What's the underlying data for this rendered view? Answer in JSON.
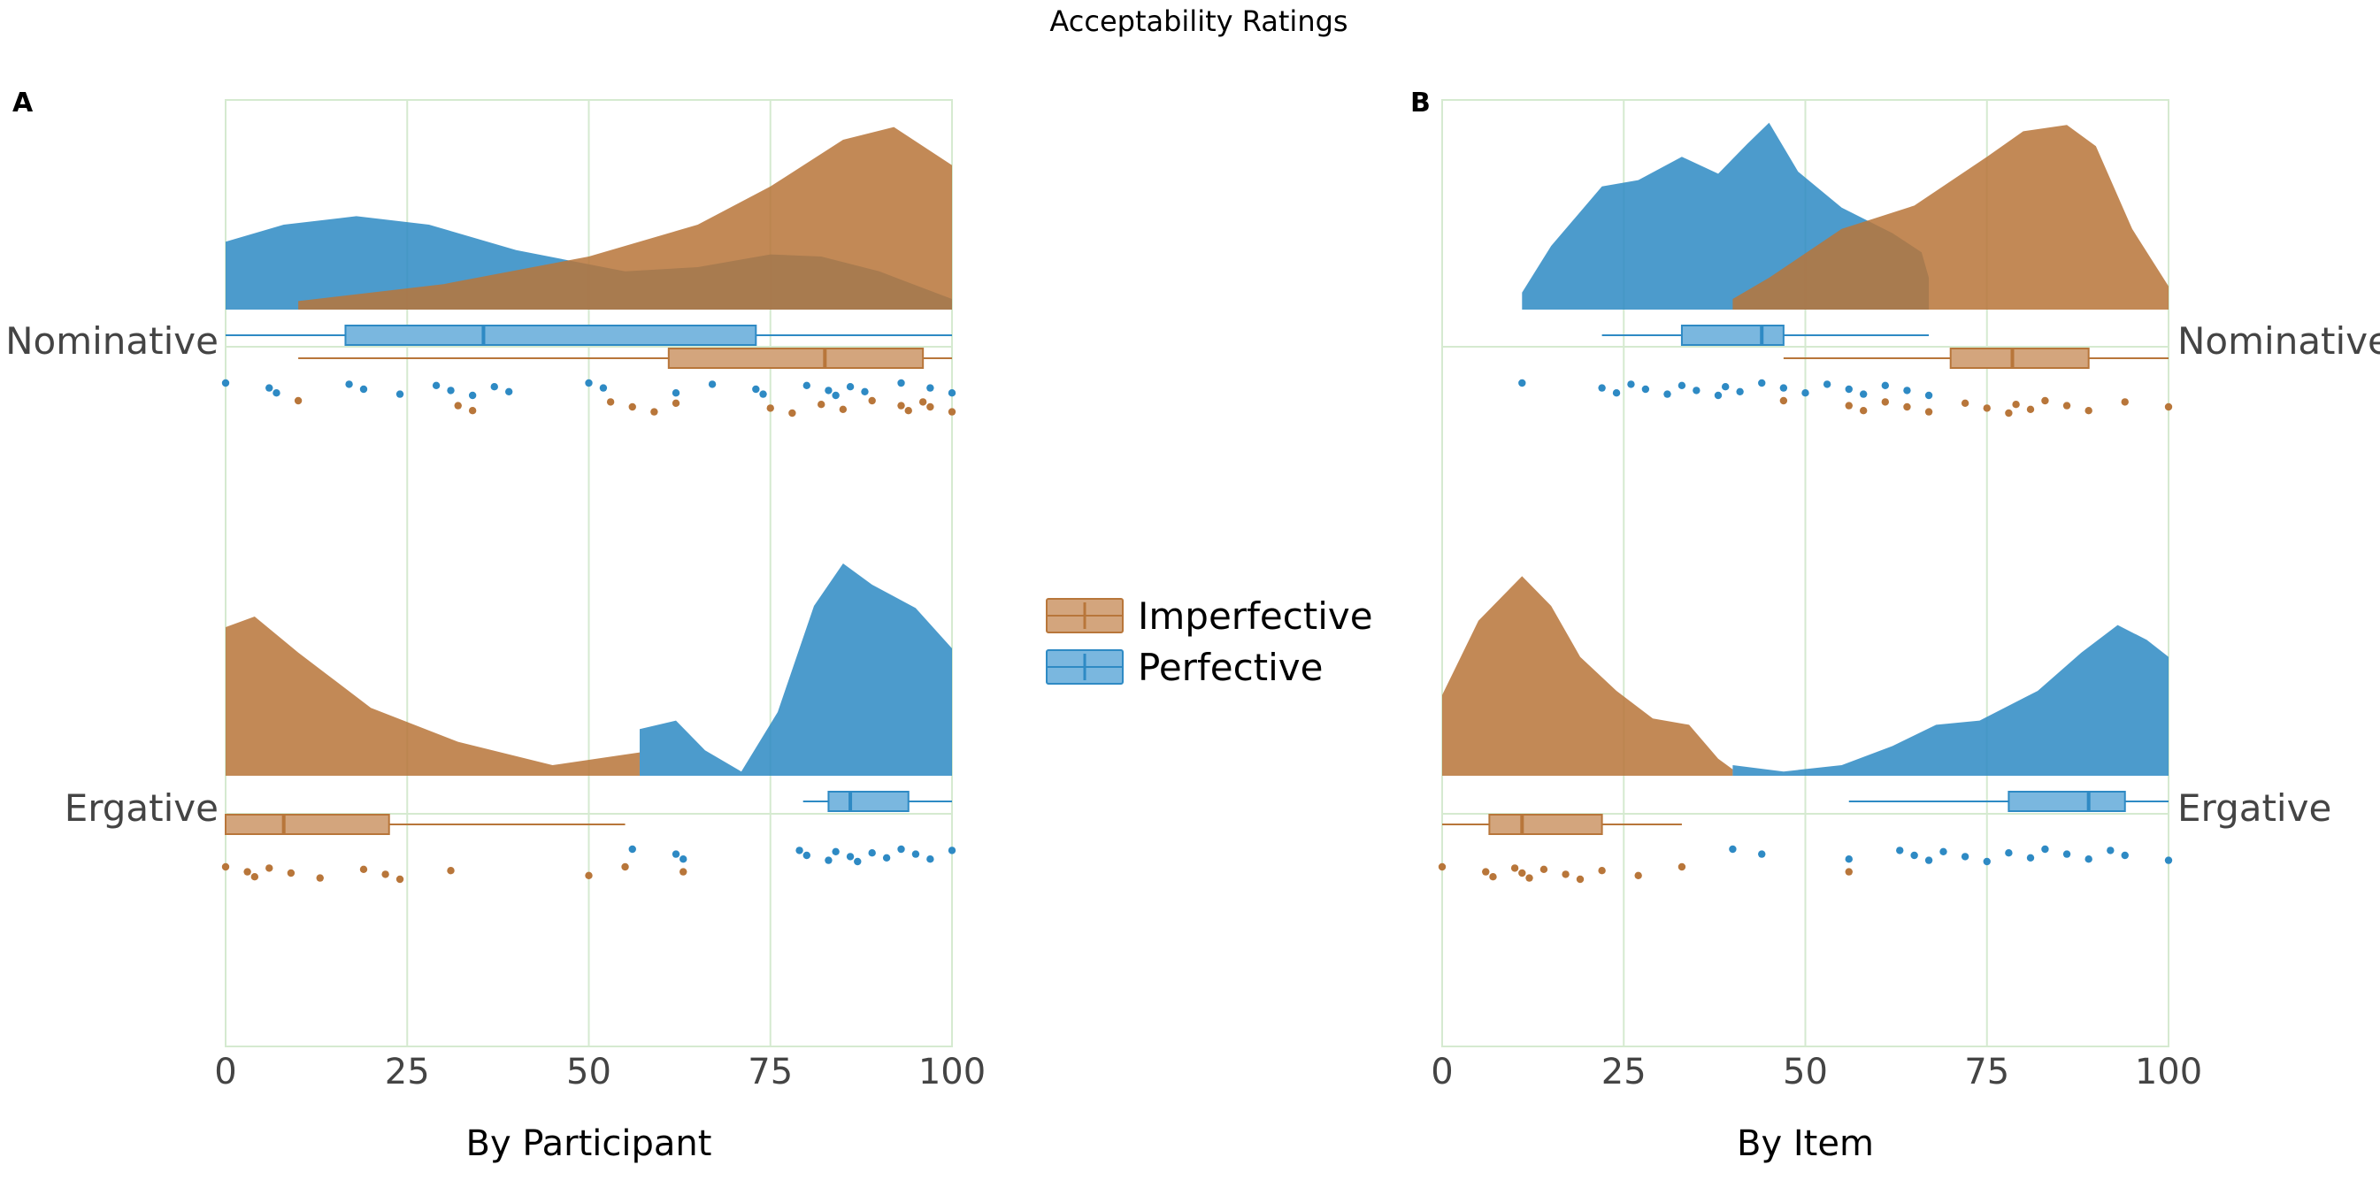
{
  "title": "Acceptability Ratings",
  "colors": {
    "Imperfective": "#b8763a",
    "Perfective": "#2e8ac4"
  },
  "legend": {
    "items": [
      {
        "label": "Imperfective",
        "key": "Imperfective"
      },
      {
        "label": "Perfective",
        "key": "Perfective"
      }
    ]
  },
  "chart_data": [
    {
      "type": "raincloud",
      "panel": "A",
      "xlabel": "By Participant",
      "xlim": [
        0,
        100
      ],
      "xticks": [
        "0",
        "25",
        "50",
        "75",
        "100"
      ],
      "categories": [
        "Nominative",
        "Ergative"
      ],
      "groups": [
        {
          "category": "Nominative",
          "series": [
            {
              "name": "Perfective",
              "density": [
                [
                  0,
                  0.32
                ],
                [
                  8,
                  0.4
                ],
                [
                  18,
                  0.44
                ],
                [
                  28,
                  0.4
                ],
                [
                  40,
                  0.28
                ],
                [
                  55,
                  0.18
                ],
                [
                  65,
                  0.2
                ],
                [
                  75,
                  0.26
                ],
                [
                  82,
                  0.25
                ],
                [
                  90,
                  0.18
                ],
                [
                  100,
                  0.05
                ]
              ],
              "box": {
                "min": 0,
                "q1": 16.5,
                "median": 35.5,
                "q3": 73,
                "max": 100
              },
              "points": [
                0,
                6,
                7,
                17,
                19,
                24,
                29,
                31,
                34,
                37,
                39,
                50,
                52,
                62,
                67,
                73,
                74,
                80,
                83,
                84,
                86,
                88,
                93,
                97,
                100
              ]
            },
            {
              "name": "Imperfective",
              "density": [
                [
                  10,
                  0.04
                ],
                [
                  30,
                  0.12
                ],
                [
                  50,
                  0.25
                ],
                [
                  65,
                  0.4
                ],
                [
                  75,
                  0.58
                ],
                [
                  85,
                  0.8
                ],
                [
                  92,
                  0.86
                ],
                [
                  100,
                  0.68
                ]
              ],
              "box": {
                "min": 10,
                "q1": 61,
                "median": 82.5,
                "q3": 96,
                "max": 100
              },
              "points": [
                10,
                32,
                34,
                53,
                56,
                59,
                62,
                75,
                78,
                82,
                85,
                89,
                93,
                94,
                96,
                97,
                100
              ]
            }
          ]
        },
        {
          "category": "Ergative",
          "series": [
            {
              "name": "Imperfective",
              "density": [
                [
                  0,
                  0.7
                ],
                [
                  4,
                  0.75
                ],
                [
                  10,
                  0.58
                ],
                [
                  20,
                  0.32
                ],
                [
                  32,
                  0.16
                ],
                [
                  45,
                  0.05
                ],
                [
                  55,
                  0.1
                ],
                [
                  57,
                  0.11
                ]
              ],
              "box": {
                "min": 0,
                "q1": 0,
                "median": 8,
                "q3": 22.5,
                "max": 55
              },
              "points": [
                0,
                3,
                4,
                6,
                9,
                13,
                19,
                22,
                24,
                31,
                50,
                55,
                63
              ]
            },
            {
              "name": "Perfective",
              "density": [
                [
                  57,
                  0.22
                ],
                [
                  62,
                  0.26
                ],
                [
                  66,
                  0.12
                ],
                [
                  71,
                  0.02
                ],
                [
                  76,
                  0.3
                ],
                [
                  81,
                  0.8
                ],
                [
                  85,
                  1.0
                ],
                [
                  89,
                  0.9
                ],
                [
                  95,
                  0.79
                ],
                [
                  100,
                  0.6
                ]
              ],
              "box": {
                "min": 79.5,
                "q1": 83,
                "median": 86,
                "q3": 94,
                "max": 100
              },
              "points": [
                56,
                62,
                63,
                79,
                80,
                83,
                84,
                86,
                87,
                89,
                91,
                93,
                95,
                97,
                100
              ]
            }
          ]
        }
      ]
    },
    {
      "type": "raincloud",
      "panel": "B",
      "xlabel": "By Item",
      "xlim": [
        0,
        100
      ],
      "xticks": [
        "0",
        "25",
        "50",
        "75",
        "100"
      ],
      "categories": [
        "Nominative",
        "Ergative"
      ],
      "groups": [
        {
          "category": "Nominative",
          "series": [
            {
              "name": "Perfective",
              "density": [
                [
                  11,
                  0.08
                ],
                [
                  15,
                  0.3
                ],
                [
                  22,
                  0.58
                ],
                [
                  27,
                  0.61
                ],
                [
                  33,
                  0.72
                ],
                [
                  38,
                  0.64
                ],
                [
                  42,
                  0.78
                ],
                [
                  45,
                  0.88
                ],
                [
                  49,
                  0.65
                ],
                [
                  55,
                  0.48
                ],
                [
                  62,
                  0.36
                ],
                [
                  66,
                  0.27
                ],
                [
                  67,
                  0.15
                ]
              ],
              "box": {
                "min": 22,
                "q1": 33,
                "median": 44,
                "q3": 47,
                "max": 67
              },
              "points": [
                11,
                22,
                24,
                26,
                28,
                31,
                33,
                35,
                38,
                39,
                41,
                44,
                47,
                50,
                53,
                56,
                58,
                61,
                64,
                67
              ]
            },
            {
              "name": "Imperfective",
              "density": [
                [
                  40,
                  0.05
                ],
                [
                  45,
                  0.15
                ],
                [
                  55,
                  0.38
                ],
                [
                  65,
                  0.49
                ],
                [
                  75,
                  0.72
                ],
                [
                  80,
                  0.84
                ],
                [
                  86,
                  0.87
                ],
                [
                  90,
                  0.77
                ],
                [
                  95,
                  0.38
                ],
                [
                  100,
                  0.11
                ]
              ],
              "box": {
                "min": 47,
                "q1": 70,
                "median": 78.5,
                "q3": 89,
                "max": 100
              },
              "points": [
                47,
                56,
                58,
                61,
                64,
                67,
                72,
                75,
                78,
                79,
                81,
                83,
                86,
                89,
                94,
                100
              ]
            }
          ]
        },
        {
          "category": "Ergative",
          "series": [
            {
              "name": "Imperfective",
              "density": [
                [
                  0,
                  0.38
                ],
                [
                  5,
                  0.73
                ],
                [
                  11,
                  0.94
                ],
                [
                  15,
                  0.8
                ],
                [
                  19,
                  0.56
                ],
                [
                  24,
                  0.4
                ],
                [
                  29,
                  0.27
                ],
                [
                  34,
                  0.24
                ],
                [
                  38,
                  0.08
                ],
                [
                  40,
                  0.03
                ]
              ],
              "box": {
                "min": 0,
                "q1": 6.5,
                "median": 11,
                "q3": 22,
                "max": 33
              },
              "points": [
                0,
                6,
                7,
                10,
                11,
                12,
                14,
                17,
                19,
                22,
                27,
                33,
                56
              ]
            },
            {
              "name": "Perfective",
              "density": [
                [
                  40,
                  0.05
                ],
                [
                  47,
                  0.02
                ],
                [
                  55,
                  0.05
                ],
                [
                  62,
                  0.14
                ],
                [
                  68,
                  0.24
                ],
                [
                  74,
                  0.26
                ],
                [
                  82,
                  0.4
                ],
                [
                  88,
                  0.58
                ],
                [
                  93,
                  0.71
                ],
                [
                  97,
                  0.64
                ],
                [
                  100,
                  0.56
                ]
              ],
              "box": {
                "min": 56,
                "q1": 78,
                "median": 89,
                "q3": 94,
                "max": 100
              },
              "points": [
                40,
                44,
                56,
                63,
                65,
                67,
                69,
                72,
                75,
                78,
                81,
                83,
                86,
                89,
                92,
                94,
                100
              ]
            }
          ]
        }
      ]
    }
  ]
}
